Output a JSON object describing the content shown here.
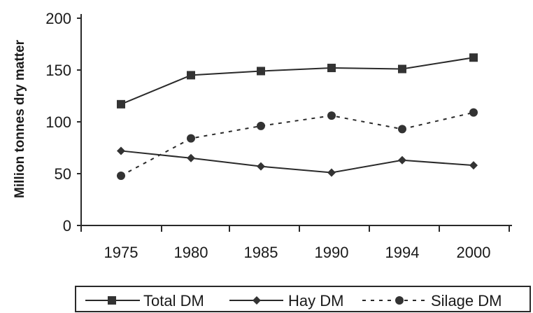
{
  "chart_data": {
    "type": "line",
    "title": "",
    "xlabel": "",
    "ylabel": "Million tonnes dry matter",
    "categories": [
      "1975",
      "1980",
      "1985",
      "1990",
      "1994",
      "2000"
    ],
    "ylim": [
      0,
      200
    ],
    "yticks": [
      0,
      50,
      100,
      150,
      200
    ],
    "grid": false,
    "legend_position": "bottom",
    "series": [
      {
        "name": "Total DM",
        "marker": "square",
        "line_style": "solid",
        "color": "#2a2a2a",
        "values": [
          117,
          145,
          149,
          152,
          151,
          162
        ]
      },
      {
        "name": "Hay DM",
        "marker": "diamond",
        "line_style": "solid",
        "color": "#2a2a2a",
        "values": [
          72,
          65,
          57,
          51,
          63,
          58
        ]
      },
      {
        "name": "Silage DM",
        "marker": "circle",
        "line_style": "dashed",
        "color": "#2a2a2a",
        "values": [
          48,
          84,
          96,
          106,
          93,
          109
        ]
      }
    ]
  }
}
